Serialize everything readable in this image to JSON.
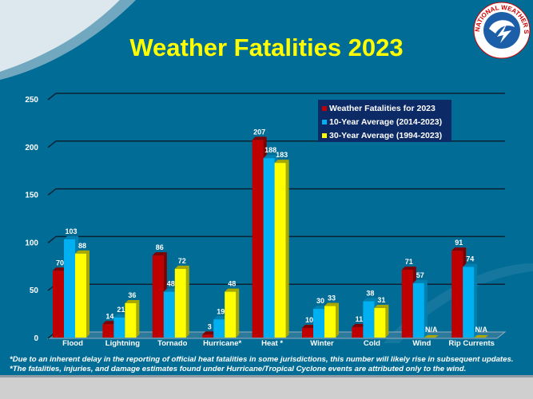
{
  "title": "Weather Fatalities 2023",
  "logo_text": "NATIONAL WEATHER SERVICE",
  "colors": {
    "series_2023": "#c00000",
    "series_10yr": "#00b0f0",
    "series_30yr": "#ffff00",
    "background": "#016d96",
    "legend_bg": "#0b2a66",
    "title": "#ffff00"
  },
  "chart_data": {
    "type": "bar",
    "title": "Weather Fatalities 2023",
    "categories": [
      "Flood",
      "Lightning",
      "Tornado",
      "Hurricane*",
      "Heat *",
      "Winter",
      "Cold",
      "Wind",
      "Rip Currents"
    ],
    "series": [
      {
        "name": "Weather Fatalities for 2023",
        "values": [
          70,
          14,
          86,
          3,
          207,
          10,
          11,
          71,
          91
        ],
        "labels": [
          "70",
          "14",
          "86",
          "3",
          "207",
          "10",
          "11",
          "71",
          "91"
        ]
      },
      {
        "name": "10-Year Average (2014-2023)",
        "values": [
          103,
          21,
          48,
          19,
          188,
          30,
          38,
          57,
          74
        ],
        "labels": [
          "103",
          "21",
          "48",
          "19",
          "188",
          "30",
          "38",
          "57",
          "74"
        ]
      },
      {
        "name": "30-Year Average (1994-2023)",
        "values": [
          88,
          36,
          72,
          48,
          183,
          33,
          31,
          null,
          null
        ],
        "labels": [
          "88",
          "36",
          "72",
          "48",
          "183",
          "33",
          "31",
          "N/A",
          "N/A"
        ]
      }
    ],
    "ylim": [
      0,
      250
    ],
    "yticks": [
      0,
      50,
      100,
      150,
      200,
      250
    ],
    "grid": true,
    "legend": "top-right"
  },
  "footnotes": [
    "*Due to an inherent delay in the reporting of official heat fatalities in some jurisdictions, this number will likely rise in subsequent updates.",
    "*The fatalities, injuries, and damage estimates found under Hurricane/Tropical Cyclone events are attributed only to the wind."
  ]
}
